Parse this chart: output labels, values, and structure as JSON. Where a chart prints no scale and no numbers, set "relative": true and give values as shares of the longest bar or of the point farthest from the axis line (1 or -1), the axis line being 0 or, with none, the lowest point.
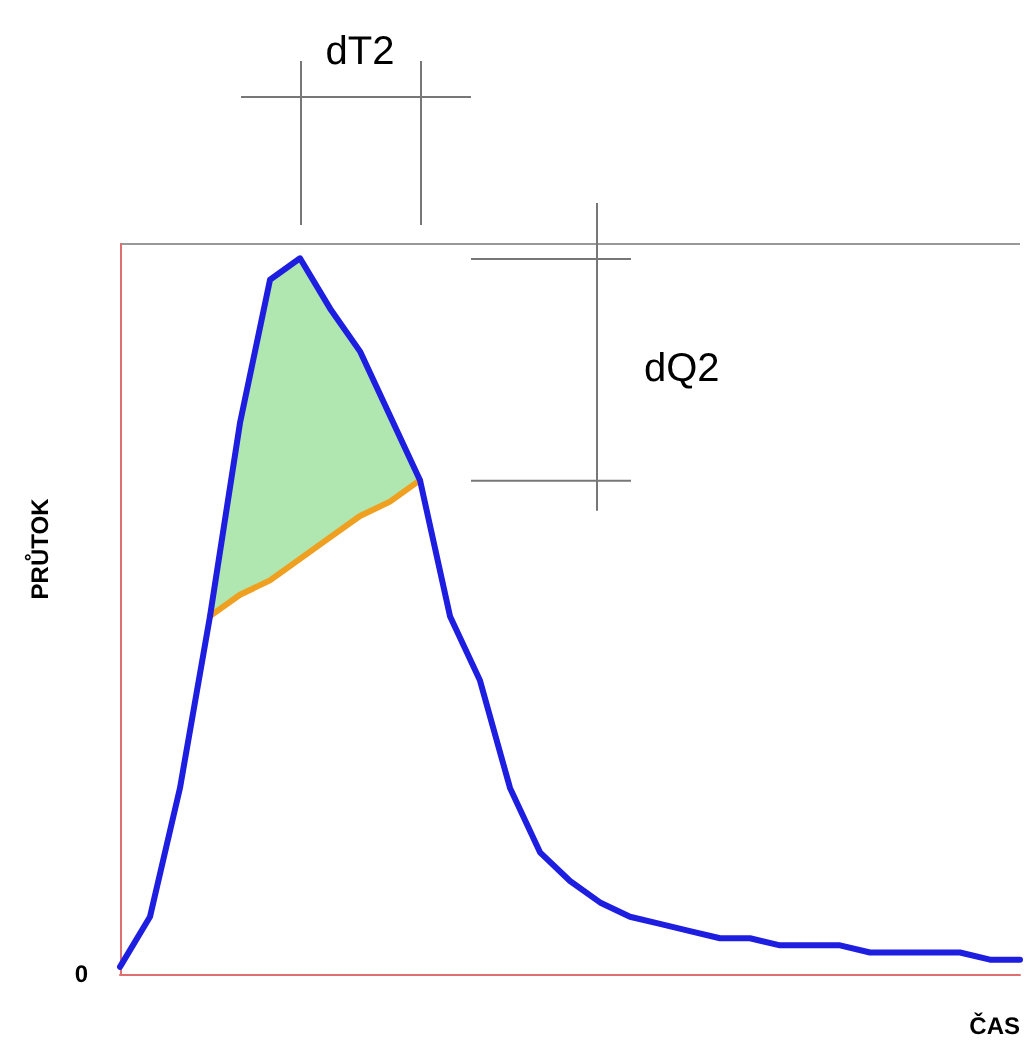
{
  "chart_data": {
    "type": "line",
    "relative": true,
    "xlabel": "ČAS",
    "ylabel": "PRŮTOK",
    "annotations": [
      "dT2",
      "dQ2",
      "0"
    ],
    "categories": [
      null,
      null,
      null,
      null,
      null,
      null,
      null,
      null,
      null,
      null,
      null,
      null,
      null,
      null,
      null,
      null,
      null,
      null,
      null,
      null,
      null,
      null,
      null,
      null,
      null,
      null,
      null,
      null,
      null,
      null,
      null
    ],
    "series": [
      {
        "color": "#1e1ee0",
        "values": [
          0.01,
          0.08,
          0.26,
          0.5,
          0.77,
          0.97,
          1,
          0.93,
          0.87,
          0.78,
          0.69,
          0.5,
          0.41,
          0.26,
          0.17,
          0.13,
          0.1,
          0.08,
          0.07,
          0.06,
          0.05,
          0.05,
          0.04,
          0.04,
          0.04,
          0.03,
          0.03,
          0.03,
          0.03,
          0.02,
          0.02
        ]
      },
      {
        "color": "#f0a020",
        "values": [
          null,
          null,
          null,
          0.5,
          0.53,
          0.55,
          0.58,
          0.61,
          0.64,
          0.66,
          0.69,
          null,
          null,
          null,
          null,
          null,
          null,
          null,
          null,
          null,
          null,
          null,
          null,
          null,
          null,
          null,
          null,
          null,
          null,
          null,
          null
        ],
        "lower": [
          null,
          null,
          null,
          0.5,
          0.53,
          0.55,
          0.58,
          0.61,
          0.64,
          0.66,
          0.69,
          null,
          null,
          null,
          null,
          null,
          null,
          null,
          null,
          null,
          null,
          null,
          null,
          null,
          null,
          null,
          null,
          null,
          null,
          null,
          null
        ],
        "upper": [
          null,
          null,
          null,
          0.5,
          0.77,
          0.97,
          1,
          0.93,
          0.87,
          0.78,
          0.69,
          null,
          null,
          null,
          null,
          null,
          null,
          null,
          null,
          null,
          null,
          null,
          null,
          null,
          null,
          null,
          null,
          null,
          null,
          null,
          null
        ]
      }
    ],
    "marker": "none",
    "grid": false
  }
}
